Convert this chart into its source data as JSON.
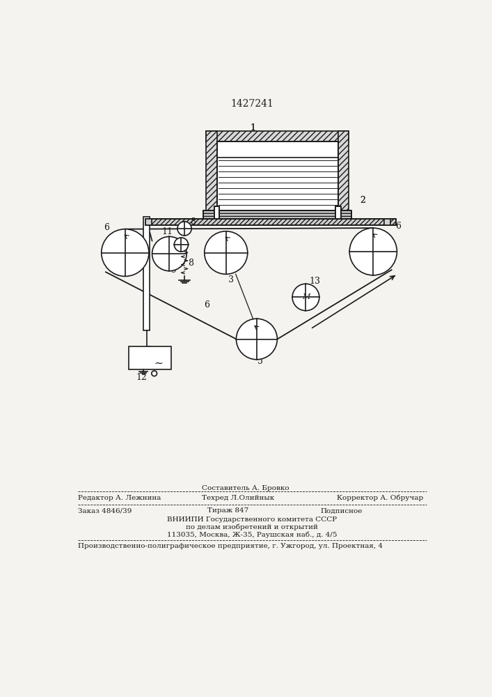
{
  "patent_number": "1427241",
  "bg_color": "#f5f3f0",
  "line_color": "#1a1a1a",
  "footer": {
    "editor": "Редактор А. Лежнина",
    "composer": "Составитель А. Бровко",
    "techred": "Техред Л.Олийнык",
    "corrector": "Корректор А. Обручар",
    "order": "Заказ 4846/39",
    "tirazh": "Тираж 847",
    "podpisnoe": "Подписное",
    "vnipi_line1": "ВНИИПИ Государственного комитета СССР",
    "vnipi_line2": "по делам изобретений и открытий",
    "vnipi_line3": "113035, Москва, Ж-35, Раушская наб., д. 4/5",
    "factory": "Производственно-полиграфическое предприятие, г. Ужгород, ул. Проектная, 4"
  }
}
